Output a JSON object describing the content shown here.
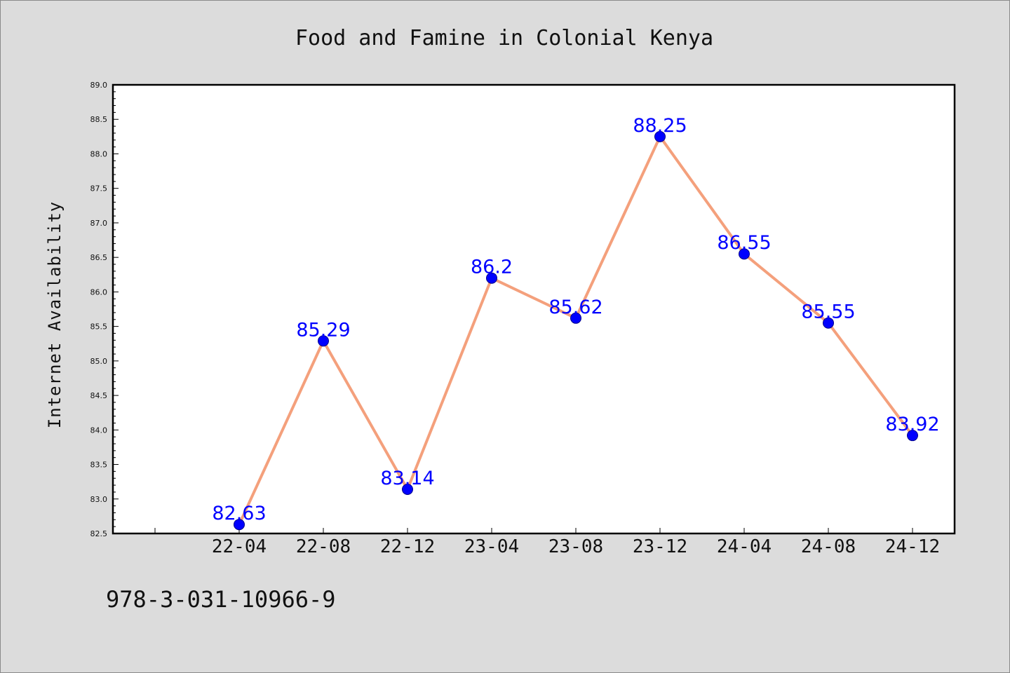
{
  "chart_data": {
    "type": "line",
    "title": "Food and Famine in Colonial Kenya",
    "xlabel": "",
    "ylabel": "Internet Availability",
    "categories": [
      "22-04",
      "22-08",
      "22-12",
      "23-04",
      "23-08",
      "23-12",
      "24-04",
      "24-08",
      "24-12"
    ],
    "series": [
      {
        "values": [
          82.63,
          85.29,
          83.14,
          86.2,
          85.62,
          88.25,
          86.55,
          85.55,
          83.92
        ],
        "data_labels": [
          "82.63",
          "85.29",
          "83.14",
          "86.2",
          "85.62",
          "88.25",
          "86.55",
          "85.55",
          "83.92"
        ]
      }
    ],
    "ylim": [
      82.5,
      89.0
    ],
    "yticks": [
      "82.5",
      "83.0",
      "83.5",
      "84.0",
      "84.5",
      "85.0",
      "85.5",
      "86.0",
      "86.5",
      "87.0",
      "87.5",
      "88.0",
      "88.5",
      "89.0"
    ],
    "grid": false,
    "legend": "none",
    "colors": {
      "line": "#f4a07c",
      "marker": "#0000ff",
      "marker_edge": "#00008b",
      "data_label": "#0000ff",
      "background": "#dcdcdc",
      "plot_background": "#ffffff"
    }
  },
  "footer": {
    "isbn": "978-3-031-10966-9"
  }
}
